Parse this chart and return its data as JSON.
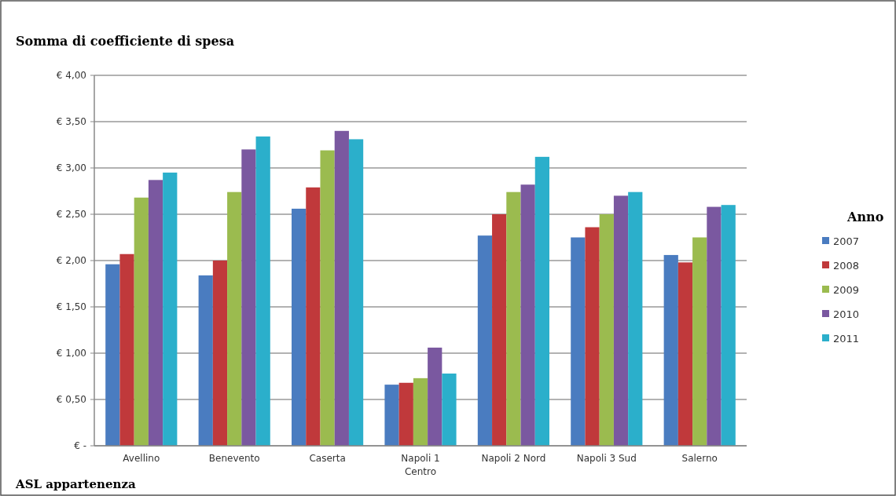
{
  "chart_data": {
    "type": "bar",
    "title": "Somma di coefficiente di spesa",
    "xlabel": "ASL appartenenza",
    "legend_title": "Anno",
    "categories": [
      "Avellino",
      "Benevento",
      "Caserta",
      "Napoli 1 Centro",
      "Napoli 2 Nord",
      "Napoli 3 Sud",
      "Salerno"
    ],
    "series": [
      {
        "name": "2007",
        "color": "#4a7cc0",
        "values": [
          1.96,
          1.84,
          2.56,
          0.66,
          2.27,
          2.25,
          2.06
        ]
      },
      {
        "name": "2008",
        "color": "#c0393b",
        "values": [
          2.07,
          2.0,
          2.79,
          0.68,
          2.5,
          2.36,
          1.98
        ]
      },
      {
        "name": "2009",
        "color": "#9bbb4f",
        "values": [
          2.68,
          2.74,
          3.19,
          0.73,
          2.74,
          2.5,
          2.25
        ]
      },
      {
        "name": "2010",
        "color": "#7a58a0",
        "values": [
          2.87,
          3.2,
          3.4,
          1.06,
          2.82,
          2.7,
          2.58
        ]
      },
      {
        "name": "2011",
        "color": "#2bafcb",
        "values": [
          2.95,
          3.34,
          3.31,
          0.78,
          3.12,
          2.74,
          2.6
        ]
      }
    ],
    "ylim": [
      0,
      4
    ],
    "yticks": [
      {
        "value": 0,
        "label": "€ -"
      },
      {
        "value": 0.5,
        "label": "€ 0,50"
      },
      {
        "value": 1,
        "label": "€ 1,00"
      },
      {
        "value": 1.5,
        "label": "€ 1,50"
      },
      {
        "value": 2,
        "label": "€ 2,00"
      },
      {
        "value": 2.5,
        "label": "€ 2,50"
      },
      {
        "value": 3,
        "label": "€ 3,00"
      },
      {
        "value": 3.5,
        "label": "€ 3,50"
      },
      {
        "value": 4,
        "label": "€ 4,00"
      }
    ],
    "grid": "y",
    "legend": "right"
  }
}
